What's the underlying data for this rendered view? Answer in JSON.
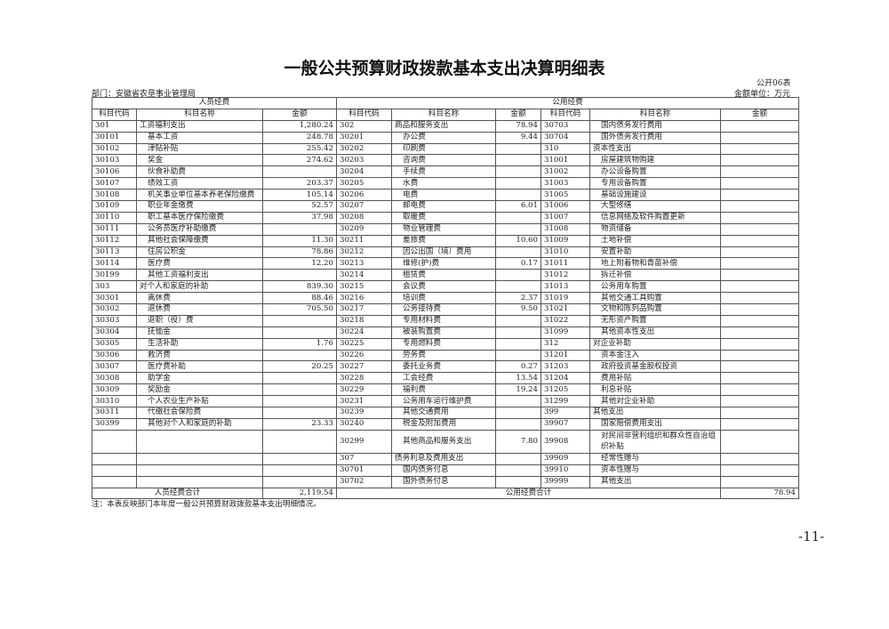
{
  "title": "一般公共预算财政拨款基本支出决算明细表",
  "form_no": "公开06表",
  "department": "部门：安徽省农垦事业管理局",
  "unit": "金额单位：万元",
  "groups": {
    "personnel": "人员经费",
    "public": "公用经费"
  },
  "headers": [
    "科目代码",
    "科目名称",
    "金额",
    "科目代码",
    "科目名称",
    "金额",
    "科目代码",
    "科目名称",
    "金额"
  ],
  "rows": [
    [
      "301",
      "工资福利支出",
      "1,280.24",
      "302",
      "商品和服务支出",
      "78.94",
      "30703",
      "国内债务发行费用",
      ""
    ],
    [
      "30101",
      "基本工资",
      "248.78",
      "30201",
      "办公费",
      "9.44",
      "30704",
      "国外债务发行费用",
      ""
    ],
    [
      "30102",
      "津贴补贴",
      "255.42",
      "30202",
      "印刷费",
      "",
      "310",
      "资本性支出",
      ""
    ],
    [
      "30103",
      "奖金",
      "274.62",
      "30203",
      "咨询费",
      "",
      "31001",
      "房屋建筑物购建",
      ""
    ],
    [
      "30106",
      "伙食补助费",
      "",
      "30204",
      "手续费",
      "",
      "31002",
      "办公设备购置",
      ""
    ],
    [
      "30107",
      "绩效工资",
      "203.37",
      "30205",
      "水费",
      "",
      "31003",
      "专用设备购置",
      ""
    ],
    [
      "30108",
      "机关事业单位基本养老保险缴费",
      "105.14",
      "30206",
      "电费",
      "",
      "31005",
      "基础设施建设",
      ""
    ],
    [
      "30109",
      "职业年金缴费",
      "52.57",
      "30207",
      "邮电费",
      "6.01",
      "31006",
      "大型修缮",
      ""
    ],
    [
      "30110",
      "职工基本医疗保险缴费",
      "37.98",
      "30208",
      "取暖费",
      "",
      "31007",
      "信息网络及软件购置更新",
      ""
    ],
    [
      "30111",
      "公务员医疗补助缴费",
      "",
      "30209",
      "物业管理费",
      "",
      "31008",
      "物资储备",
      ""
    ],
    [
      "30112",
      "其他社会保障缴费",
      "11.30",
      "30211",
      "差旅费",
      "10.60",
      "31009",
      "土地补偿",
      ""
    ],
    [
      "30113",
      "住房公积金",
      "78.86",
      "30212",
      "因公出国（境）费用",
      "",
      "31010",
      "安置补助",
      ""
    ],
    [
      "30114",
      "医疗费",
      "12.20",
      "30213",
      "维修(护)费",
      "0.17",
      "31011",
      "地上附着物和青苗补偿",
      ""
    ],
    [
      "30199",
      "其他工资福利支出",
      "",
      "30214",
      "租赁费",
      "",
      "31012",
      "拆迁补偿",
      ""
    ],
    [
      "303",
      "对个人和家庭的补助",
      "839.30",
      "30215",
      "会议费",
      "",
      "31013",
      "公务用车购置",
      ""
    ],
    [
      "30301",
      "离休费",
      "88.46",
      "30216",
      "培训费",
      "2.37",
      "31019",
      "其他交通工具购置",
      ""
    ],
    [
      "30302",
      "退休费",
      "705.50",
      "30217",
      "公务接待费",
      "9.50",
      "31021",
      "文物和陈列品购置",
      ""
    ],
    [
      "30303",
      "退职（役）费",
      "",
      "30218",
      "专用材料费",
      "",
      "31022",
      "无形资产购置",
      ""
    ],
    [
      "30304",
      "抚恤金",
      "",
      "30224",
      "被装购置费",
      "",
      "31099",
      "其他资本性支出",
      ""
    ],
    [
      "30305",
      "生活补助",
      "1.76",
      "30225",
      "专用燃料费",
      "",
      "312",
      "对企业补助",
      ""
    ],
    [
      "30306",
      "救济费",
      "",
      "30226",
      "劳务费",
      "",
      "31201",
      "资本金注入",
      ""
    ],
    [
      "30307",
      "医疗费补助",
      "20.25",
      "30227",
      "委托业务费",
      "0.27",
      "31203",
      "政府投资基金股权投资",
      ""
    ],
    [
      "30308",
      "助学金",
      "",
      "30228",
      "工会经费",
      "13.54",
      "31204",
      "费用补贴",
      ""
    ],
    [
      "30309",
      "奖励金",
      "",
      "30229",
      "福利费",
      "19.24",
      "31205",
      "利息补贴",
      ""
    ],
    [
      "30310",
      "个人农业生产补贴",
      "",
      "30231",
      "公务用车运行维护费",
      "",
      "31299",
      "其他对企业补助",
      ""
    ],
    [
      "30311",
      "代缴社会保险费",
      "",
      "30239",
      "其他交通费用",
      "",
      "399",
      "其他支出",
      ""
    ],
    [
      "30399",
      "其他对个人和家庭的补助",
      "23.33",
      "30240",
      "税金及附加费用",
      "",
      "39907",
      "国家赔偿费用支出",
      ""
    ],
    [
      "",
      "",
      "",
      "30299",
      "其他商品和服务支出",
      "7.80",
      "39908",
      "对民间非营利组织和群众性自治组织补贴",
      ""
    ],
    [
      "",
      "",
      "",
      "307",
      "债务利息及费用支出",
      "",
      "39909",
      "经常性赠与",
      ""
    ],
    [
      "",
      "",
      "",
      "30701",
      "国内债务付息",
      "",
      "39910",
      "资本性赠与",
      ""
    ],
    [
      "",
      "",
      "",
      "30702",
      "国外债务付息",
      "",
      "39999",
      "其他支出",
      ""
    ]
  ],
  "totals": {
    "personnel_label": "人员经费合计",
    "personnel_value": "2,119.54",
    "public_label": "公用经费合计",
    "public_value": "78.94"
  },
  "note": "注：本表反映部门本年度一般公共预算财政拨款基本支出明细情况。",
  "page_number": "-11-"
}
